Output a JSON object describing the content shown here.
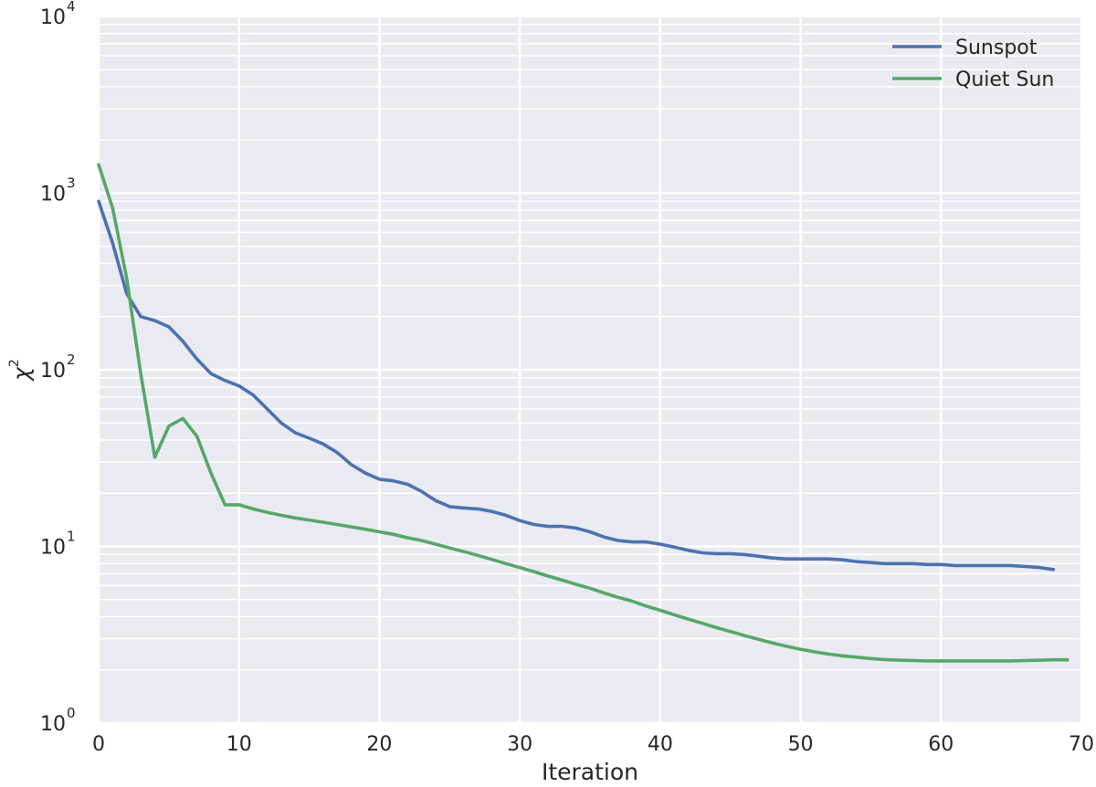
{
  "chart_data": {
    "type": "line",
    "title": "",
    "xlabel": "Iteration",
    "ylabel": "χ2",
    "xlim": [
      0,
      70
    ],
    "ylim": [
      1,
      10000
    ],
    "yscale": "log",
    "grid": true,
    "legend_position": "top-right",
    "x_ticks": [
      "0",
      "10",
      "20",
      "30",
      "40",
      "50",
      "60",
      "70"
    ],
    "y_ticks": [
      {
        "base": "10",
        "exp": "0"
      },
      {
        "base": "10",
        "exp": "1"
      },
      {
        "base": "10",
        "exp": "2"
      },
      {
        "base": "10",
        "exp": "3"
      },
      {
        "base": "10",
        "exp": "4"
      }
    ],
    "series": [
      {
        "name": "Sunspot",
        "color": "#4c72b0",
        "x": [
          0,
          1,
          2,
          3,
          4,
          5,
          6,
          7,
          8,
          9,
          10,
          11,
          12,
          13,
          14,
          15,
          16,
          17,
          18,
          19,
          20,
          21,
          22,
          23,
          24,
          25,
          26,
          27,
          28,
          29,
          30,
          31,
          32,
          33,
          34,
          35,
          36,
          37,
          38,
          39,
          40,
          41,
          42,
          43,
          44,
          45,
          46,
          47,
          48,
          49,
          50,
          51,
          52,
          53,
          54,
          55,
          56,
          57,
          58,
          59,
          60,
          61,
          62,
          63,
          64,
          65,
          66,
          67,
          68
        ],
        "values": [
          900,
          520,
          270,
          200,
          190,
          175,
          145,
          115,
          95,
          87,
          81,
          72,
          60,
          50,
          44,
          41,
          38,
          34,
          29,
          26,
          24,
          23.5,
          22.5,
          20.5,
          18.2,
          16.8,
          16.5,
          16.3,
          15.8,
          15,
          14,
          13.3,
          13,
          13,
          12.7,
          12.1,
          11.3,
          10.8,
          10.6,
          10.6,
          10.3,
          9.9,
          9.5,
          9.2,
          9.1,
          9.1,
          9.0,
          8.8,
          8.6,
          8.5,
          8.5,
          8.5,
          8.5,
          8.4,
          8.2,
          8.1,
          8.0,
          8.0,
          8.0,
          7.9,
          7.9,
          7.8,
          7.8,
          7.8,
          7.8,
          7.8,
          7.7,
          7.6,
          7.4
        ]
      },
      {
        "name": "Quiet Sun",
        "color": "#55a868",
        "x": [
          0,
          1,
          2,
          3,
          4,
          5,
          6,
          7,
          8,
          9,
          10,
          11,
          12,
          13,
          14,
          15,
          16,
          17,
          18,
          19,
          20,
          21,
          22,
          23,
          24,
          25,
          26,
          27,
          28,
          29,
          30,
          31,
          32,
          33,
          34,
          35,
          36,
          37,
          38,
          39,
          40,
          41,
          42,
          43,
          44,
          45,
          46,
          47,
          48,
          49,
          50,
          51,
          52,
          53,
          54,
          55,
          56,
          57,
          58,
          59,
          60,
          61,
          62,
          63,
          64,
          65,
          66,
          67,
          68,
          69
        ],
        "values": [
          1450,
          820,
          330,
          95,
          32,
          48,
          53,
          42,
          26,
          17.2,
          17.2,
          16.3,
          15.6,
          15,
          14.5,
          14.1,
          13.7,
          13.3,
          12.9,
          12.5,
          12.1,
          11.7,
          11.2,
          10.8,
          10.3,
          9.8,
          9.35,
          8.9,
          8.45,
          8.0,
          7.6,
          7.2,
          6.8,
          6.45,
          6.1,
          5.8,
          5.45,
          5.15,
          4.9,
          4.6,
          4.35,
          4.1,
          3.88,
          3.67,
          3.47,
          3.3,
          3.13,
          2.98,
          2.84,
          2.72,
          2.62,
          2.53,
          2.46,
          2.4,
          2.36,
          2.32,
          2.29,
          2.27,
          2.26,
          2.25,
          2.25,
          2.25,
          2.25,
          2.25,
          2.25,
          2.25,
          2.26,
          2.27,
          2.28,
          2.28
        ]
      }
    ]
  }
}
